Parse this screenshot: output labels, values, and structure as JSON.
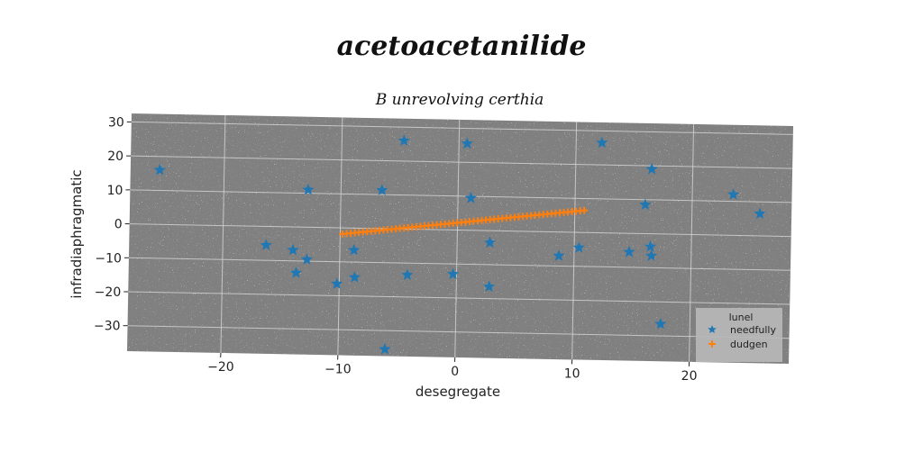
{
  "figure_title": "acetoacetanilide",
  "chart_data": {
    "type": "scatter",
    "title": "B unrevolving certhia",
    "xlabel": "desegregate",
    "ylabel": "infradiaphragmatic",
    "xlim": [
      -28,
      28.5
    ],
    "ylim": [
      -37.5,
      32.5
    ],
    "x_ticks": [
      -20,
      -10,
      0,
      10,
      20
    ],
    "y_ticks": [
      30,
      20,
      10,
      0,
      -10,
      -20,
      -30
    ],
    "x_tick_labels": [
      "−20",
      "−10",
      "0",
      "10",
      "20"
    ],
    "y_tick_labels": [
      "30",
      "20",
      "10",
      "0",
      "−10",
      "−20",
      "−30"
    ],
    "grid": true,
    "legend": {
      "title": "lunel",
      "placement": "bottom-right"
    },
    "series": [
      {
        "name": "needfully",
        "marker": "star",
        "color": "#1f77b4",
        "points": [
          [
            -25.5,
            16
          ],
          [
            -4.7,
            26
          ],
          [
            0.7,
            25.5
          ],
          [
            12.2,
            26.5
          ],
          [
            16.5,
            19
          ],
          [
            -12.8,
            11
          ],
          [
            -6.5,
            11.3
          ],
          [
            1.1,
            9.5
          ],
          [
            16,
            8.5
          ],
          [
            23.5,
            12
          ],
          [
            25.8,
            6.5
          ],
          [
            -16.3,
            -5.5
          ],
          [
            -14,
            -6.8
          ],
          [
            -12.8,
            -9.5
          ],
          [
            -13.7,
            -13.5
          ],
          [
            -8.8,
            -6.5
          ],
          [
            -8.7,
            -14.5
          ],
          [
            -10.2,
            -16.5
          ],
          [
            -4.2,
            -13.5
          ],
          [
            -0.3,
            -13
          ],
          [
            2.8,
            -3.5
          ],
          [
            2.8,
            -16.5
          ],
          [
            8.7,
            -7
          ],
          [
            10.4,
            -4.5
          ],
          [
            14.7,
            -5.5
          ],
          [
            16.5,
            -3.8
          ],
          [
            16.6,
            -6.5
          ],
          [
            17.5,
            -26.5
          ],
          [
            -6,
            -35.5
          ]
        ]
      },
      {
        "name": "dudgen",
        "marker": "plus",
        "color": "#ff7f0e",
        "line": {
          "x0": -9.8,
          "y0": -1.8,
          "x1": 10.8,
          "y1": 6.5,
          "n": 60
        }
      }
    ]
  },
  "colors": {
    "plot_background": "#808080",
    "grid": "#d8d8d8",
    "needfully": "#1f77b4",
    "dudgen": "#ff7f0e"
  }
}
